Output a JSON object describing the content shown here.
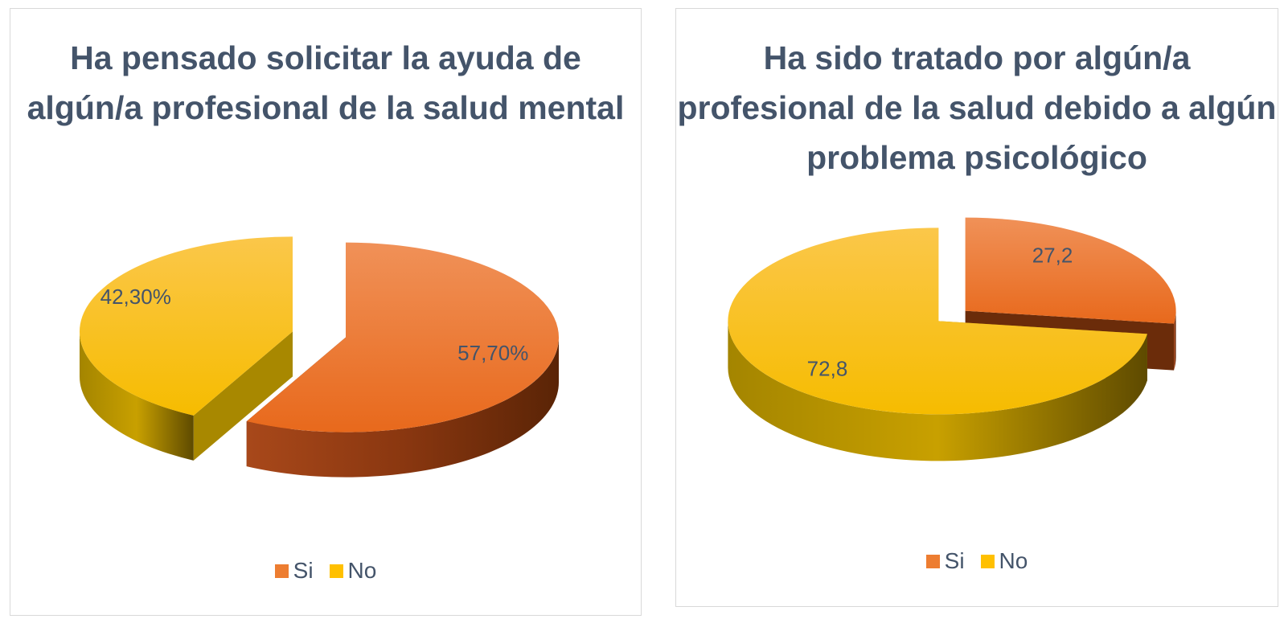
{
  "chart_data": [
    {
      "type": "pie",
      "title": "Ha pensado solicitar la ayuda de algún/a profesional de la salud mental",
      "categories": [
        "Si",
        "No"
      ],
      "values": [
        57.7,
        42.3
      ],
      "data_labels": [
        "57,70%",
        "42,30%"
      ],
      "legend": [
        "Si",
        "No"
      ],
      "legend_position": "bottom",
      "colors": [
        "#ED7D31",
        "#FFC000"
      ],
      "exploded": true
    },
    {
      "type": "pie",
      "title": "Ha sido tratado por algún/a profesional de la salud debido a algún problema psicológico",
      "categories": [
        "Si",
        "No"
      ],
      "values": [
        27.2,
        72.8
      ],
      "data_labels": [
        "27,2",
        "72,8"
      ],
      "legend": [
        "Si",
        "No"
      ],
      "legend_position": "bottom",
      "colors": [
        "#ED7D31",
        "#FFC000"
      ],
      "exploded": true
    }
  ]
}
